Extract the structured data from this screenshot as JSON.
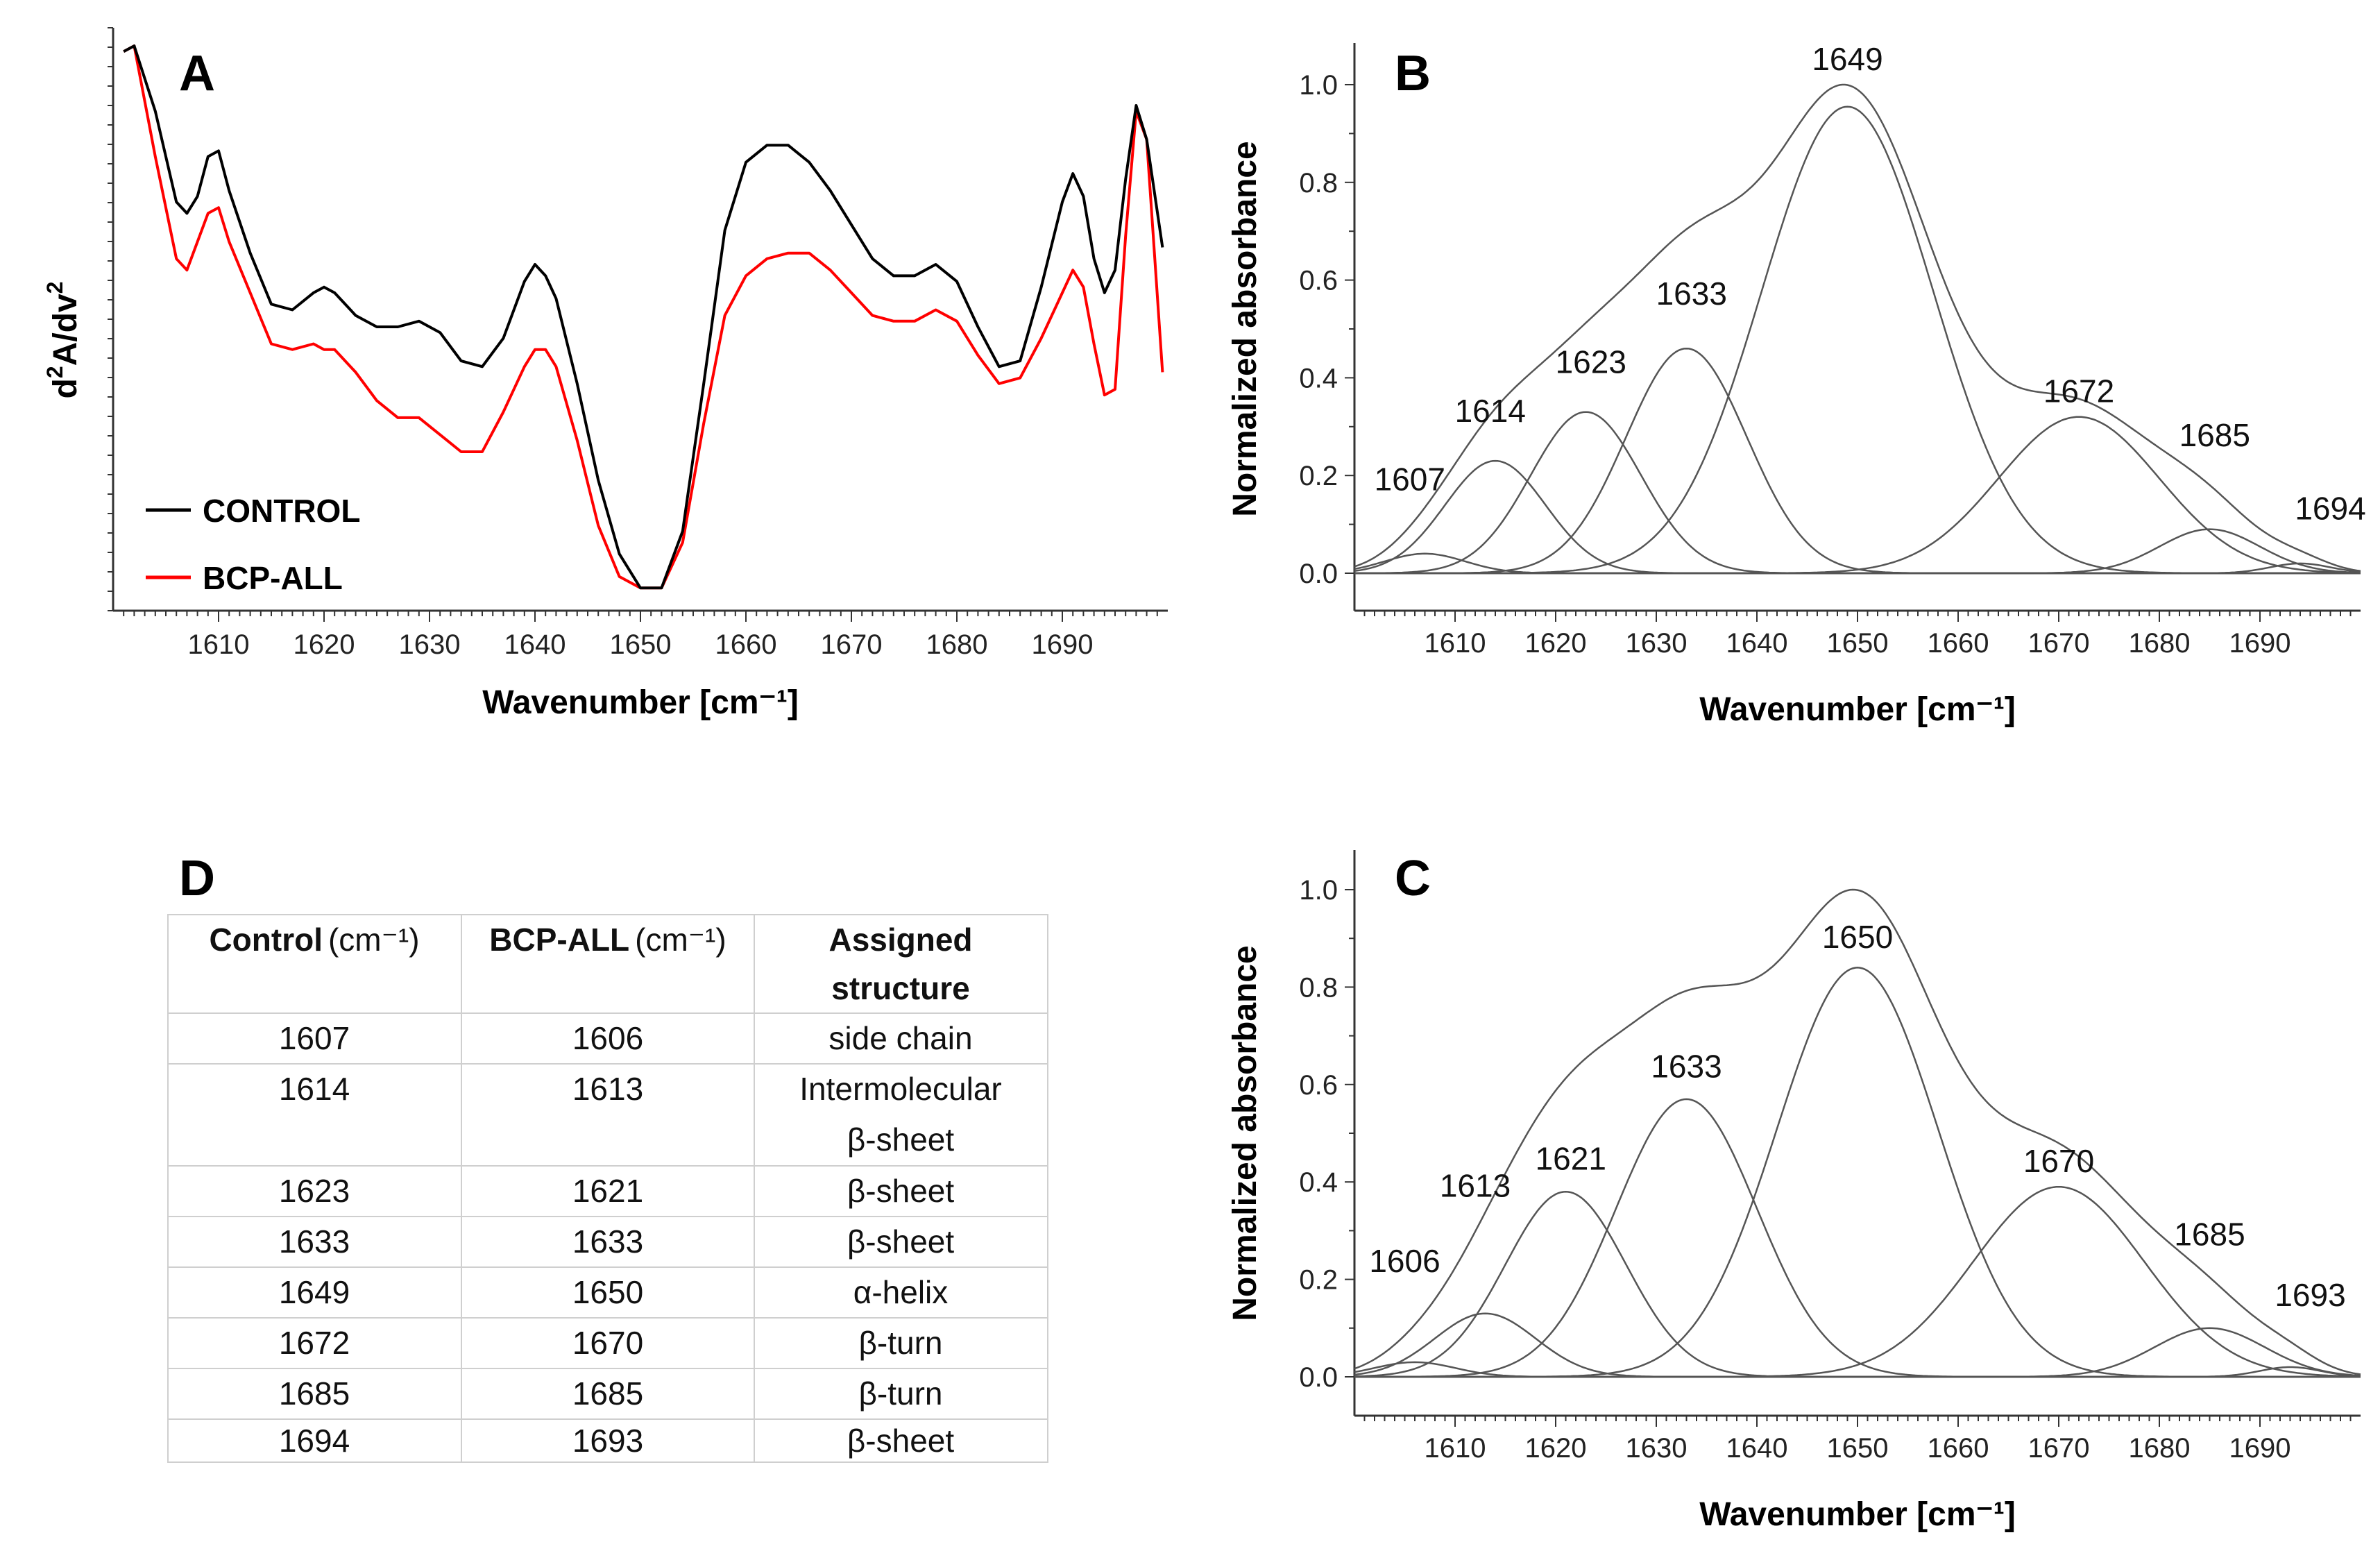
{
  "chart_data": [
    {
      "panel": "A",
      "type": "line",
      "xlabel": "Wavenumber [cm⁻¹]",
      "ylabel": "d²A/dν²",
      "xlim": [
        1600,
        1700
      ],
      "xticks": [
        1610,
        1620,
        1630,
        1640,
        1650,
        1660,
        1670,
        1680,
        1690
      ],
      "ylim": [
        0,
        1
      ],
      "legend": "bottom-left",
      "series": [
        {
          "name": "CONTROL",
          "color": "#000000",
          "x": [
            1601,
            1602,
            1604,
            1606,
            1607,
            1608,
            1609,
            1610,
            1611,
            1613,
            1615,
            1617,
            1619,
            1620,
            1621,
            1623,
            1625,
            1627,
            1629,
            1631,
            1633,
            1635,
            1637,
            1639,
            1640,
            1641,
            1642,
            1644,
            1646,
            1648,
            1650,
            1652,
            1654,
            1656,
            1658,
            1660,
            1662,
            1664,
            1666,
            1668,
            1670,
            1672,
            1674,
            1676,
            1678,
            1680,
            1682,
            1684,
            1686,
            1688,
            1690,
            1691,
            1692,
            1693,
            1694,
            1695,
            1696,
            1697,
            1698,
            1699.5
          ],
          "y": [
            0.985,
            0.995,
            0.88,
            0.72,
            0.7,
            0.73,
            0.8,
            0.81,
            0.74,
            0.63,
            0.54,
            0.53,
            0.56,
            0.57,
            0.56,
            0.52,
            0.5,
            0.5,
            0.51,
            0.49,
            0.44,
            0.43,
            0.48,
            0.58,
            0.61,
            0.59,
            0.55,
            0.4,
            0.23,
            0.1,
            0.04,
            0.04,
            0.14,
            0.4,
            0.67,
            0.79,
            0.82,
            0.82,
            0.79,
            0.74,
            0.68,
            0.62,
            0.59,
            0.59,
            0.61,
            0.58,
            0.5,
            0.43,
            0.44,
            0.57,
            0.72,
            0.77,
            0.73,
            0.62,
            0.56,
            0.6,
            0.76,
            0.89,
            0.83,
            0.64
          ]
        },
        {
          "name": "BCP-ALL",
          "color": "#ff0000",
          "x": [
            1601,
            1602,
            1604,
            1606,
            1607,
            1608,
            1609,
            1610,
            1611,
            1613,
            1615,
            1617,
            1619,
            1620,
            1621,
            1623,
            1625,
            1627,
            1629,
            1631,
            1633,
            1635,
            1637,
            1639,
            1640,
            1641,
            1642,
            1644,
            1646,
            1648,
            1650,
            1652,
            1654,
            1656,
            1658,
            1660,
            1662,
            1664,
            1666,
            1668,
            1670,
            1672,
            1674,
            1676,
            1678,
            1680,
            1682,
            1684,
            1686,
            1688,
            1690,
            1691,
            1692,
            1693,
            1694,
            1695,
            1696,
            1697,
            1698,
            1699.5
          ],
          "y": [
            0.985,
            0.995,
            0.8,
            0.62,
            0.6,
            0.65,
            0.7,
            0.71,
            0.65,
            0.56,
            0.47,
            0.46,
            0.47,
            0.46,
            0.46,
            0.42,
            0.37,
            0.34,
            0.34,
            0.31,
            0.28,
            0.28,
            0.35,
            0.43,
            0.46,
            0.46,
            0.43,
            0.3,
            0.15,
            0.06,
            0.04,
            0.04,
            0.12,
            0.33,
            0.52,
            0.59,
            0.62,
            0.63,
            0.63,
            0.6,
            0.56,
            0.52,
            0.51,
            0.51,
            0.53,
            0.51,
            0.45,
            0.4,
            0.41,
            0.48,
            0.56,
            0.6,
            0.57,
            0.47,
            0.38,
            0.39,
            0.66,
            0.88,
            0.83,
            0.42
          ]
        }
      ]
    },
    {
      "panel": "B",
      "type": "line",
      "xlabel": "Wavenumber [cm⁻¹]",
      "ylabel": "Normalized absorbance",
      "xlim": [
        1600,
        1700
      ],
      "ylim": [
        0,
        1.05
      ],
      "xticks": [
        1610,
        1620,
        1630,
        1640,
        1650,
        1660,
        1670,
        1680,
        1690
      ],
      "yticks": [
        0.0,
        0.2,
        0.4,
        0.6,
        0.8,
        1.0
      ],
      "ytick_labels": [
        "0.0",
        "0.2",
        "0.4",
        "0.6",
        "0.8",
        "1.0"
      ],
      "envelope_peak": 1.0,
      "components": [
        {
          "center": 1607,
          "height": 0.04,
          "sigma": 4.0,
          "label": "1607"
        },
        {
          "center": 1614,
          "height": 0.23,
          "sigma": 5.0,
          "label": "1614"
        },
        {
          "center": 1623,
          "height": 0.33,
          "sigma": 5.5,
          "label": "1623"
        },
        {
          "center": 1633,
          "height": 0.46,
          "sigma": 6.0,
          "label": "1633"
        },
        {
          "center": 1649,
          "height": 0.955,
          "sigma": 8.5,
          "label": "1649"
        },
        {
          "center": 1672,
          "height": 0.32,
          "sigma": 8.0,
          "label": "1672"
        },
        {
          "center": 1685,
          "height": 0.09,
          "sigma": 5.0,
          "label": "1685"
        },
        {
          "center": 1694,
          "height": 0.02,
          "sigma": 3.0,
          "label": "1694"
        }
      ]
    },
    {
      "panel": "C",
      "type": "line",
      "xlabel": "Wavenumber [cm⁻¹]",
      "ylabel": "Normalized absorbance",
      "xlim": [
        1600,
        1700
      ],
      "ylim": [
        0,
        1.05
      ],
      "xticks": [
        1610,
        1620,
        1630,
        1640,
        1650,
        1660,
        1670,
        1680,
        1690
      ],
      "yticks": [
        0.0,
        0.2,
        0.4,
        0.6,
        0.8,
        1.0
      ],
      "ytick_labels": [
        "0.0",
        "0.2",
        "0.4",
        "0.6",
        "0.8",
        "1.0"
      ],
      "envelope_peak": 1.0,
      "components": [
        {
          "center": 1606,
          "height": 0.03,
          "sigma": 4.0,
          "label": "1606"
        },
        {
          "center": 1613,
          "height": 0.13,
          "sigma": 5.0,
          "label": "1613"
        },
        {
          "center": 1621,
          "height": 0.38,
          "sigma": 6.0,
          "label": "1621"
        },
        {
          "center": 1633,
          "height": 0.57,
          "sigma": 7.0,
          "label": "1633"
        },
        {
          "center": 1650,
          "height": 0.84,
          "sigma": 8.0,
          "label": "1650"
        },
        {
          "center": 1670,
          "height": 0.39,
          "sigma": 8.5,
          "label": "1670"
        },
        {
          "center": 1685,
          "height": 0.1,
          "sigma": 5.5,
          "label": "1685"
        },
        {
          "center": 1693,
          "height": 0.02,
          "sigma": 3.0,
          "label": "1693"
        }
      ]
    },
    {
      "panel": "D",
      "type": "table",
      "columns": [
        "Control (cm⁻¹)",
        "BCP-ALL (cm⁻¹)",
        "Assigned structure"
      ],
      "rows": [
        [
          "1607",
          "1606",
          "side chain"
        ],
        [
          "1614",
          "1613",
          "Intermolecular β-sheet"
        ],
        [
          "1623",
          "1621",
          "β-sheet"
        ],
        [
          "1633",
          "1633",
          "β-sheet"
        ],
        [
          "1649",
          "1650",
          "α-helix"
        ],
        [
          "1672",
          "1670",
          "β-turn"
        ],
        [
          "1685",
          "1685",
          "β-turn"
        ],
        [
          "1694",
          "1693",
          "β-sheet"
        ]
      ]
    }
  ],
  "panels": {
    "a": {
      "letter": "A",
      "legend": [
        "CONTROL",
        "BCP-ALL"
      ],
      "ylabel_main": "d",
      "ylabel_sup1": "2",
      "ylabel_mid": "A/dv",
      "ylabel_sup2": "2"
    },
    "b": {
      "letter": "B"
    },
    "c": {
      "letter": "C"
    },
    "d": {
      "letter": "D",
      "head_col1": "Control",
      "head_col2": "BCP-ALL",
      "head_unit": "(cm⁻¹)",
      "head_col3_line1": "Assigned",
      "head_col3_line2": "structure",
      "row2_col3_line1": "Intermolecular",
      "row2_col3_line2": "β-sheet"
    }
  }
}
